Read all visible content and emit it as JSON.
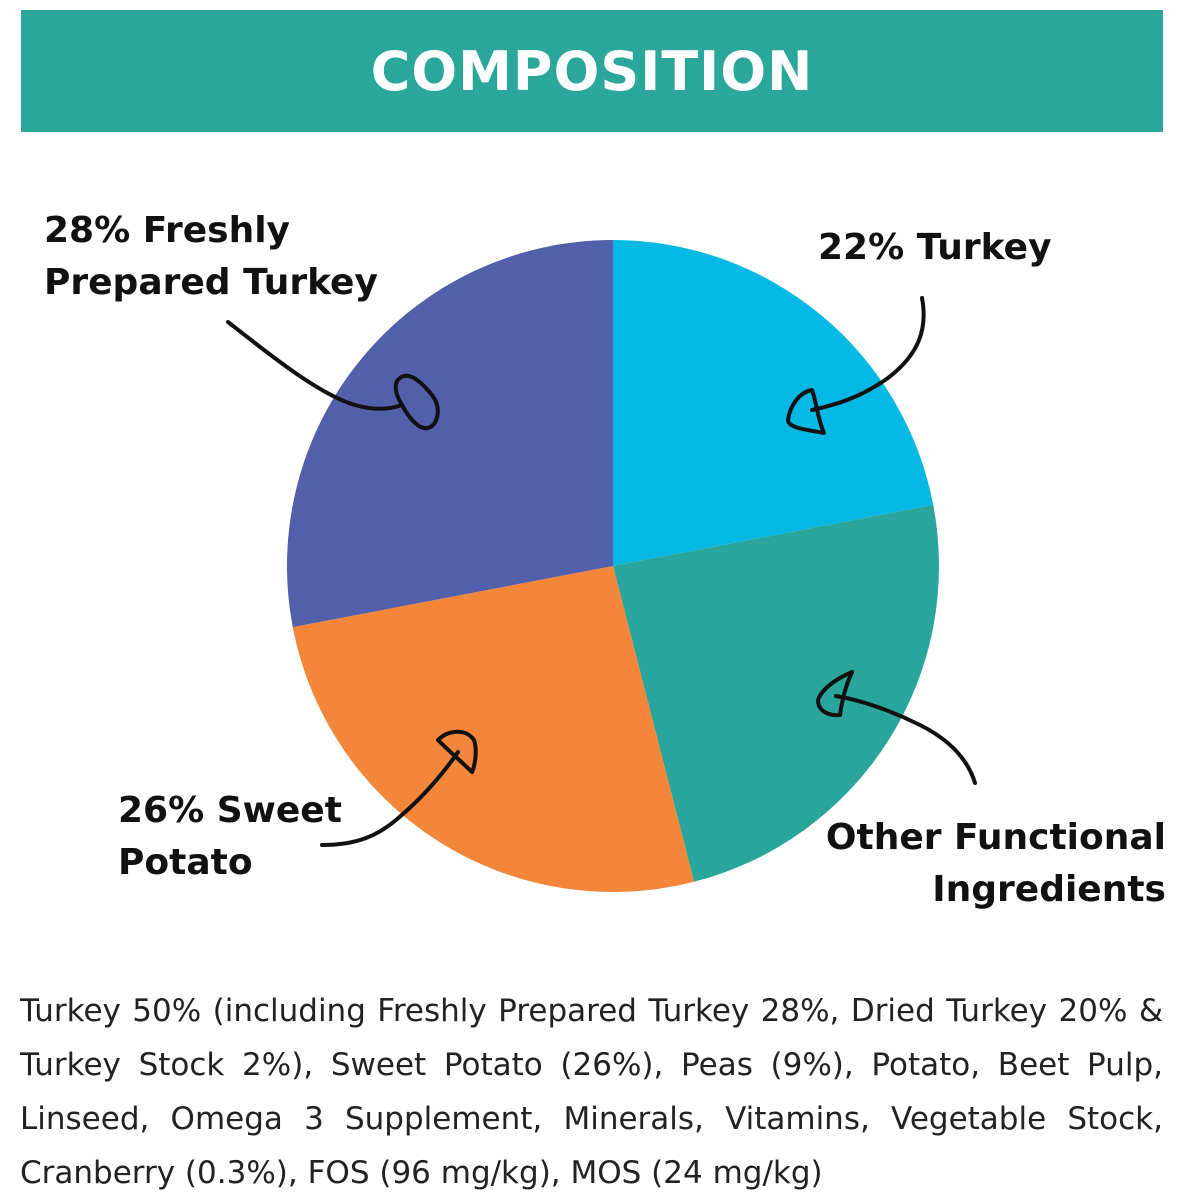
{
  "colors": {
    "header_bg": "#2aa69a",
    "fresh_turkey": "#525fab",
    "turkey": "#05b9e4",
    "other": "#29a59b",
    "sweet_potato": "#f4863a",
    "arrow": "#111111"
  },
  "header": {
    "title": "COMPOSITION"
  },
  "chart_data": {
    "type": "pie",
    "title": "COMPOSITION",
    "slices": [
      {
        "label": "22% Turkey",
        "value": 22,
        "color_key": "turkey"
      },
      {
        "label": "Other Functional Ingredients",
        "value": 24,
        "color_key": "other"
      },
      {
        "label": "26% Sweet Potato",
        "value": 26,
        "color_key": "sweet_potato"
      },
      {
        "label": "28% Freshly Prepared Turkey",
        "value": 28,
        "color_key": "fresh_turkey"
      }
    ]
  },
  "labels": {
    "fresh_line1": "28% Freshly",
    "fresh_line2": "Prepared Turkey",
    "turkey": "22% Turkey",
    "sweet_line1": "26% Sweet",
    "sweet_line2": "Potato",
    "other_line1": "Other Functional",
    "other_line2": "Ingredients"
  },
  "ingredients_text": "Turkey 50% (including Freshly Prepared Turkey 28%, Dried Turkey 20% & Turkey Stock 2%), Sweet Potato (26%), Peas (9%), Potato, Beet Pulp, Linseed, Omega 3 Supplement, Minerals, Vitamins, Vegetable Stock, Cranberry (0.3%), FOS (96 mg/kg), MOS (24 mg/kg)"
}
